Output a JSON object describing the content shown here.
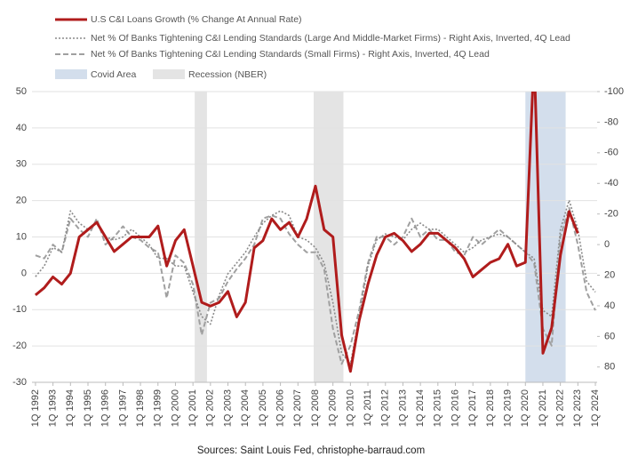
{
  "chart_data": {
    "type": "line",
    "x": [
      1992,
      1992.5,
      1993,
      1993.5,
      1994,
      1994.5,
      1995,
      1995.5,
      1996,
      1996.5,
      1997,
      1997.5,
      1998,
      1998.5,
      1999,
      1999.5,
      2000,
      2000.5,
      2001,
      2001.5,
      2002,
      2002.5,
      2003,
      2003.5,
      2004,
      2004.5,
      2005,
      2005.5,
      2006,
      2006.5,
      2007,
      2007.5,
      2008,
      2008.5,
      2009,
      2009.5,
      2010,
      2010.5,
      2011,
      2011.5,
      2012,
      2012.5,
      2013,
      2013.5,
      2014,
      2014.5,
      2015,
      2015.5,
      2016,
      2016.5,
      2017,
      2017.5,
      2018,
      2018.5,
      2019,
      2019.5,
      2020,
      2020.5,
      2021,
      2021.5,
      2022,
      2022.5,
      2023,
      2023.5,
      2024
    ],
    "series": [
      {
        "name": "U.S C&I Loans Growth (% Change At Annual Rate)",
        "color": "#b01c1c",
        "style": "solid",
        "values": [
          -6,
          -4,
          -1,
          -3,
          0,
          10,
          12,
          14,
          10,
          6,
          8,
          10,
          10,
          10,
          13,
          2,
          9,
          12,
          2,
          -8,
          -9,
          -8,
          -5,
          -12,
          -8,
          7,
          9,
          15,
          12,
          14,
          10,
          15,
          24,
          12,
          10,
          -17,
          -27,
          -13,
          -3,
          5,
          10,
          11,
          9,
          6,
          8,
          11,
          11,
          9,
          7,
          4,
          -1,
          1,
          3,
          4,
          8,
          2,
          3,
          60,
          -22,
          -15,
          5,
          17,
          11,
          null,
          null
        ]
      },
      {
        "name": "Net % Of Banks Tightening C&I Lending Standards (Large And Middle-Market Firms) - Right Axis, Inverted, 4Q Lead",
        "color": "#8a8a8a",
        "style": "dotted",
        "axis": "y2",
        "values": [
          21,
          14,
          2,
          5,
          -22,
          -14,
          -10,
          -14,
          -5,
          -3,
          -5,
          -10,
          -5,
          0,
          9,
          9,
          14,
          14,
          31,
          47,
          52,
          33,
          19,
          12,
          5,
          -5,
          -14,
          -19,
          -22,
          -19,
          -5,
          -3,
          2,
          12,
          38,
          71,
          78,
          47,
          14,
          -3,
          -7,
          -5,
          -3,
          -10,
          -14,
          -10,
          -10,
          -5,
          0,
          5,
          2,
          -3,
          -5,
          -7,
          -5,
          0,
          5,
          9,
          43,
          47,
          -10,
          -29,
          -10,
          24,
          31
        ]
      },
      {
        "name": "Net % Of Banks Tightening C&I Lending Standards (Small Firms) - Right Axis, Inverted, 4Q Lead",
        "color": "#a0a0a0",
        "style": "dashed",
        "axis": "y2",
        "values": [
          7,
          9,
          0,
          5,
          -17,
          -10,
          -5,
          -17,
          0,
          -5,
          -12,
          -5,
          -3,
          2,
          5,
          35,
          7,
          12,
          26,
          59,
          38,
          35,
          24,
          16,
          9,
          0,
          -17,
          -19,
          -17,
          -7,
          0,
          5,
          5,
          16,
          55,
          78,
          66,
          43,
          12,
          -5,
          -5,
          0,
          -5,
          -17,
          -5,
          -10,
          -3,
          -3,
          5,
          7,
          -5,
          0,
          -5,
          -10,
          -5,
          0,
          5,
          12,
          55,
          66,
          -5,
          -24,
          0,
          31,
          43
        ]
      }
    ],
    "bands": [
      {
        "name": "Covid Area",
        "color": "#d3deec",
        "ranges": [
          [
            2020,
            2022.3
          ]
        ]
      },
      {
        "name": "Recession (NBER)",
        "color": "#e4e4e4",
        "ranges": [
          [
            2001.1,
            2001.8
          ],
          [
            2007.9,
            2009.6
          ]
        ]
      }
    ],
    "xlim": [
      1991.8,
      2024.1
    ],
    "xticks": [
      {
        "value": 1992,
        "label": "1Q 1992"
      },
      {
        "value": 1993,
        "label": "1Q 1993"
      },
      {
        "value": 1994,
        "label": "1Q 1994"
      },
      {
        "value": 1995,
        "label": "1Q 1995"
      },
      {
        "value": 1996,
        "label": "1Q 1996"
      },
      {
        "value": 1997,
        "label": "1Q 1997"
      },
      {
        "value": 1998,
        "label": "1Q 1998"
      },
      {
        "value": 1999,
        "label": "1Q 1999"
      },
      {
        "value": 2000,
        "label": "1Q 2000"
      },
      {
        "value": 2001,
        "label": "1Q 2001"
      },
      {
        "value": 2002,
        "label": "1Q 2002"
      },
      {
        "value": 2003,
        "label": "1Q 2003"
      },
      {
        "value": 2004,
        "label": "1Q 2004"
      },
      {
        "value": 2005,
        "label": "1Q 2005"
      },
      {
        "value": 2006,
        "label": "1Q 2006"
      },
      {
        "value": 2007,
        "label": "1Q 2007"
      },
      {
        "value": 2008,
        "label": "1Q 2008"
      },
      {
        "value": 2009,
        "label": "1Q 2009"
      },
      {
        "value": 2010,
        "label": "1Q 2010"
      },
      {
        "value": 2011,
        "label": "1Q 2011"
      },
      {
        "value": 2012,
        "label": "1Q 2012"
      },
      {
        "value": 2013,
        "label": "1Q 2013"
      },
      {
        "value": 2014,
        "label": "1Q 2014"
      },
      {
        "value": 2015,
        "label": "1Q 2015"
      },
      {
        "value": 2016,
        "label": "1Q 2016"
      },
      {
        "value": 2017,
        "label": "1Q 2017"
      },
      {
        "value": 2018,
        "label": "1Q 2018"
      },
      {
        "value": 2019,
        "label": "1Q 2019"
      },
      {
        "value": 2020,
        "label": "1Q 2020"
      },
      {
        "value": 2021,
        "label": "1Q 2021"
      },
      {
        "value": 2022,
        "label": "1Q 2022"
      },
      {
        "value": 2023,
        "label": "1Q 2023"
      },
      {
        "value": 2024,
        "label": "1Q 2024"
      }
    ],
    "ylim": [
      -30,
      50
    ],
    "yticks": [
      -30,
      -20,
      -10,
      0,
      10,
      20,
      30,
      40,
      50
    ],
    "y2lim": [
      90,
      -100
    ],
    "y2ticks": [
      -100,
      -80,
      -60,
      -40,
      -20,
      0,
      20,
      40,
      60,
      80
    ],
    "grid": true,
    "legend": "top-left",
    "source": "Sources: Saint Louis Fed, christophe-barraud.com"
  }
}
